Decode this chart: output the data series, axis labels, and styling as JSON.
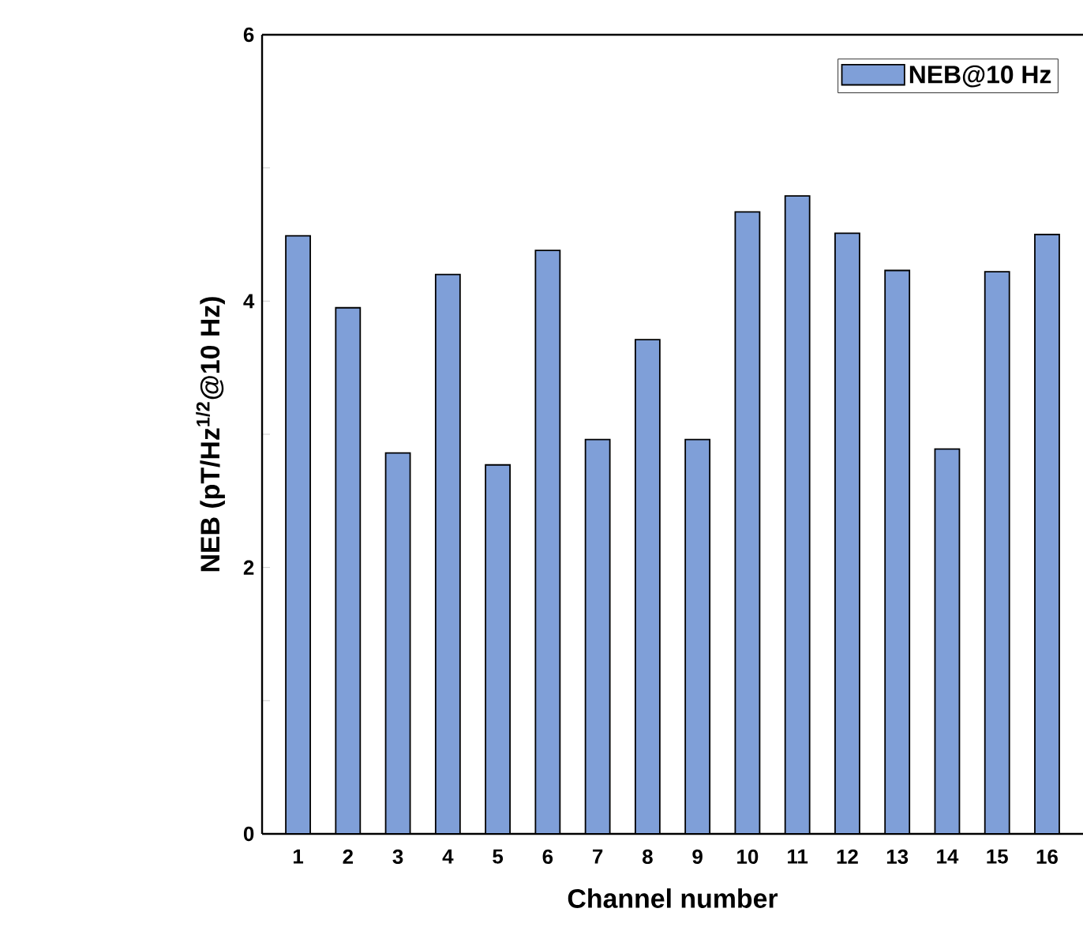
{
  "chart_data": {
    "type": "bar",
    "xlabel": "Channel number",
    "ylabel": "NEB (pT/Hz$^{1/2}$@10 Hz)",
    "categories": [
      "1",
      "2",
      "3",
      "4",
      "5",
      "6",
      "7",
      "8",
      "9",
      "10",
      "11",
      "12",
      "13",
      "14",
      "15",
      "16"
    ],
    "series": [
      {
        "name": "NEB@10 Hz",
        "color": "#7f9fd8",
        "values": [
          4.49,
          3.95,
          2.86,
          4.2,
          2.77,
          4.38,
          2.96,
          3.71,
          2.96,
          4.67,
          4.79,
          4.51,
          4.23,
          2.89,
          4.22,
          4.5
        ]
      }
    ],
    "ylim": [
      0,
      6
    ],
    "yticks": [
      0,
      {
        "value": 1,
        "label": null
      },
      2,
      {
        "value": 3,
        "label": null
      },
      4,
      {
        "value": 5,
        "label": null
      },
      6
    ],
    "legend": "top right",
    "grid": false
  }
}
